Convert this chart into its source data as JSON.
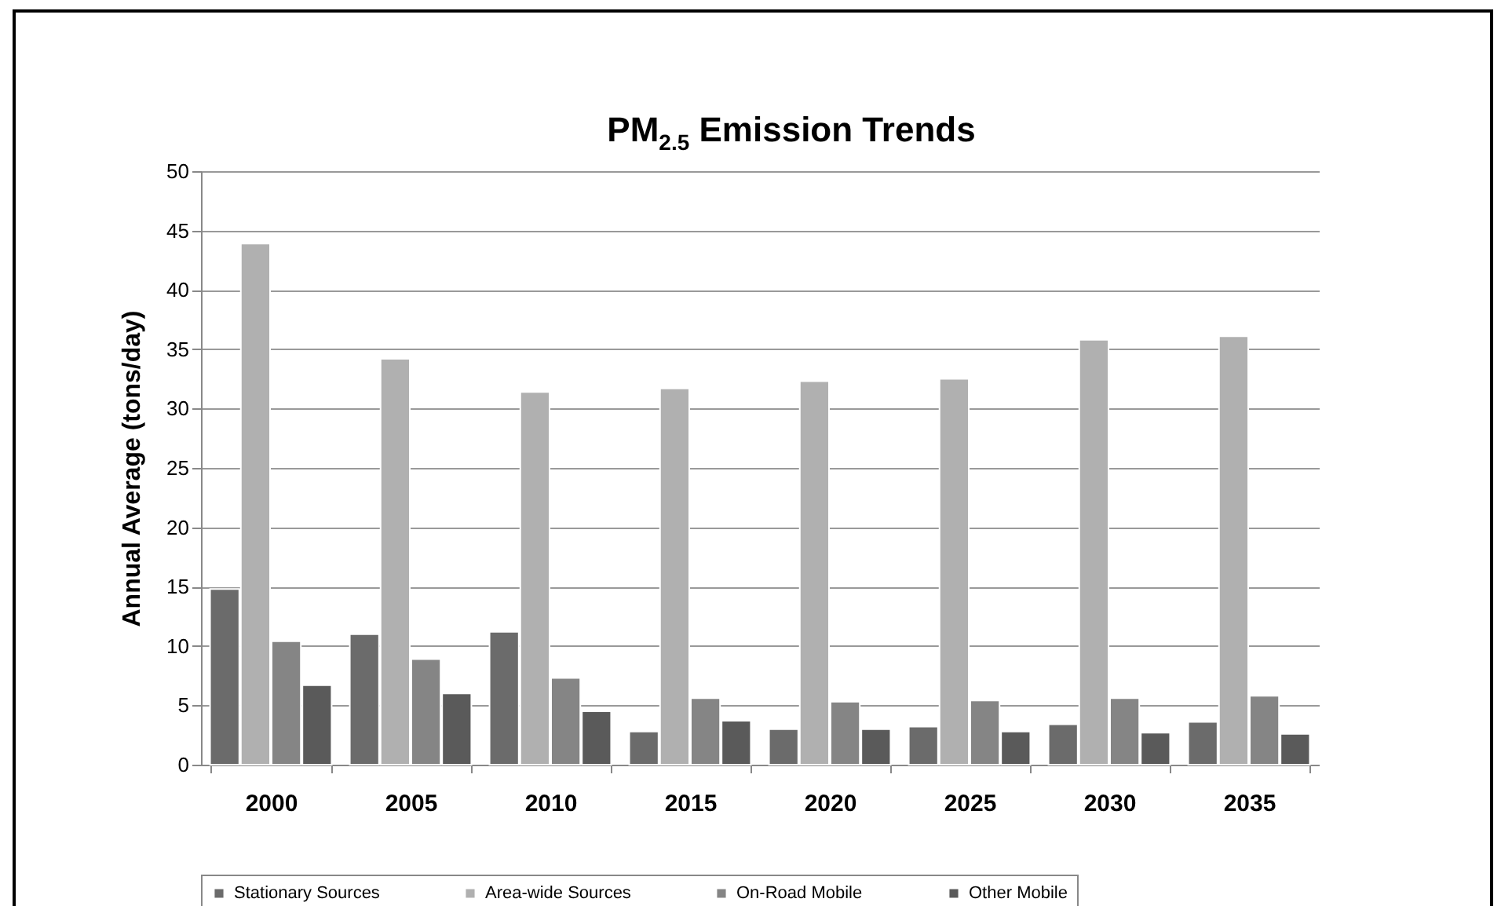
{
  "chart_data": {
    "type": "bar",
    "title": "PM$_{2.5}$ Emission Trends",
    "ylabel": "Annual Average (tons/day)",
    "categories": [
      "2000",
      "2005",
      "2010",
      "2015",
      "2020",
      "2025",
      "2030",
      "2035"
    ],
    "series": [
      {
        "name": "Stationary Sources",
        "color": "#6b6b6b",
        "values": [
          14.8,
          11.0,
          11.2,
          2.8,
          3.0,
          3.2,
          3.4,
          3.6
        ]
      },
      {
        "name": "Area-wide Sources",
        "color": "#b0b0b0",
        "values": [
          43.9,
          34.2,
          31.4,
          31.7,
          32.3,
          32.5,
          35.8,
          36.1
        ]
      },
      {
        "name": "On-Road Mobile",
        "color": "#858585",
        "values": [
          10.4,
          8.9,
          7.3,
          5.6,
          5.3,
          5.4,
          5.6,
          5.8
        ]
      },
      {
        "name": "Other Mobile",
        "color": "#5a5a5a",
        "values": [
          6.7,
          6.0,
          4.5,
          3.7,
          3.0,
          2.8,
          2.7,
          2.6
        ]
      }
    ],
    "ylim": [
      0,
      50
    ],
    "yticks": [
      0,
      5,
      10,
      15,
      20,
      25,
      30,
      35,
      40,
      45,
      50
    ],
    "grid": "y",
    "legend": "bottom"
  }
}
